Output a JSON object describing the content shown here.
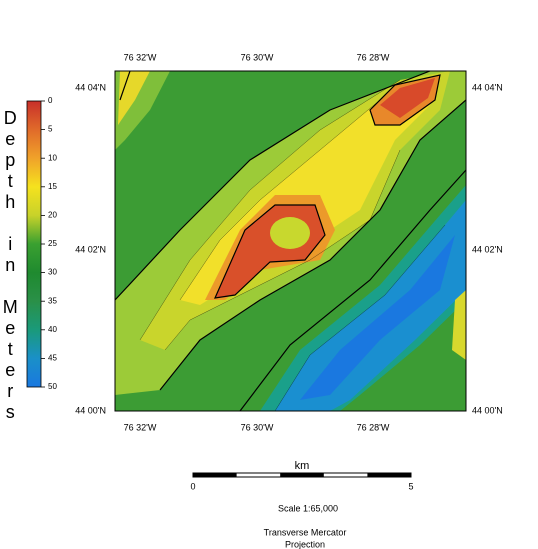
{
  "legend": {
    "title": "Depth in Meters",
    "ticks": [
      0,
      5,
      10,
      15,
      20,
      25,
      30,
      35,
      40,
      45,
      50
    ]
  },
  "map": {
    "top_labels": [
      "76 32'W",
      "76 30'W",
      "76 28'W"
    ],
    "bottom_labels": [
      "76 32'W",
      "76 30'W",
      "76 28'W"
    ],
    "left_labels": [
      "44 04'N",
      "44 02'N",
      "44 00'N"
    ],
    "right_labels": [
      "44 04'N",
      "44 02'N",
      "44 00'N"
    ]
  },
  "scale_bar": {
    "unit": "km",
    "start": 0,
    "end": 5
  },
  "scale": "Scale 1:65,000",
  "projection": [
    "Transverse Mercator",
    "Projection"
  ]
}
